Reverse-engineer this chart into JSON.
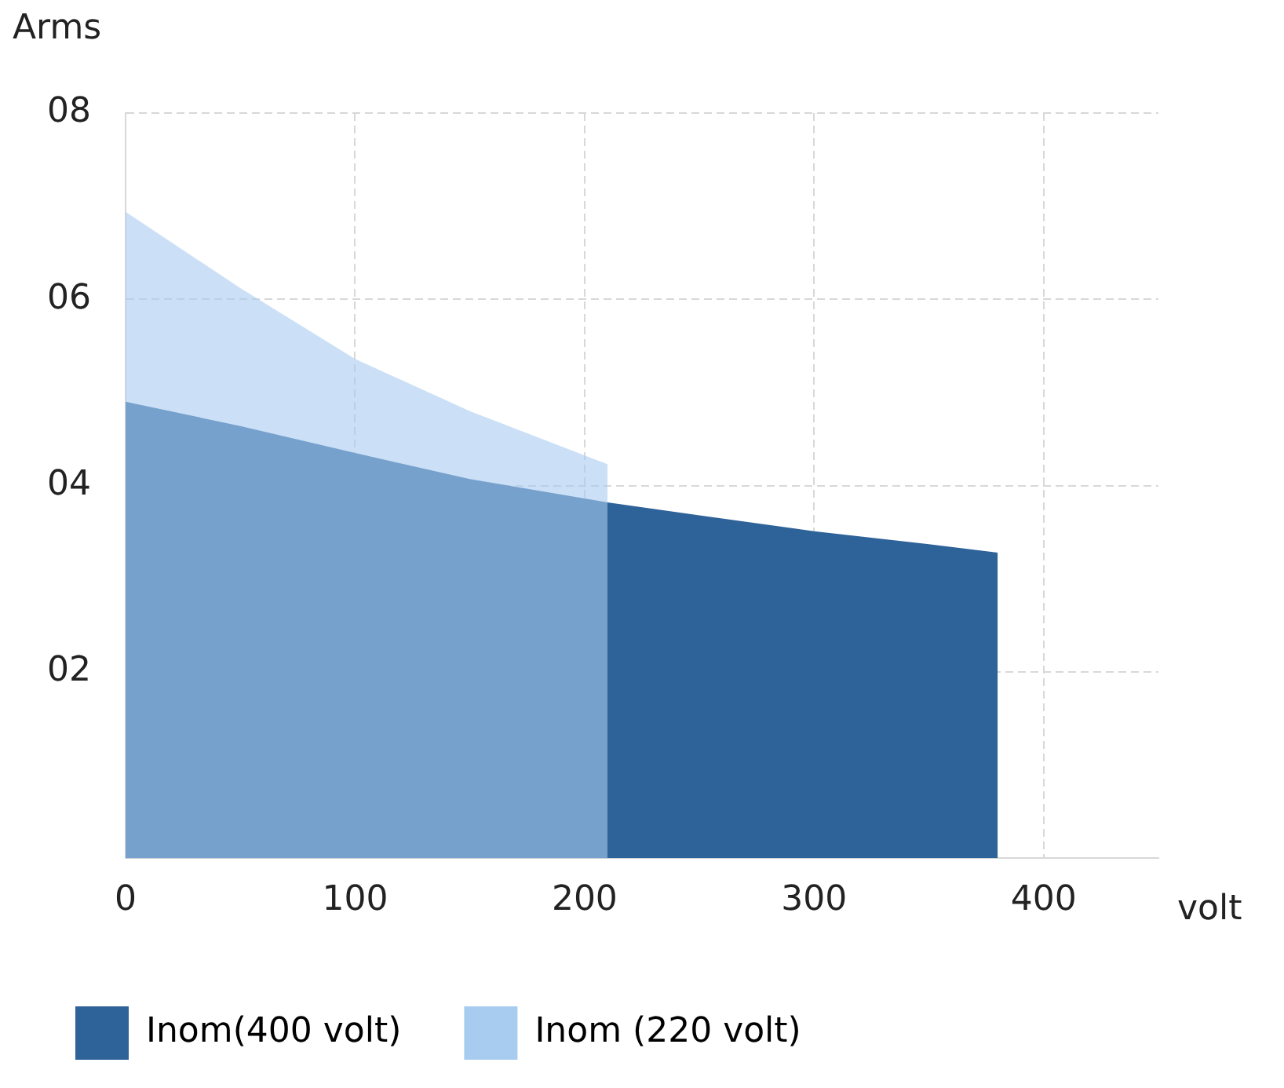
{
  "chart_data": {
    "type": "area",
    "xlabel": "volt",
    "ylabel": "Arms",
    "xlim": [
      0,
      450
    ],
    "ylim": [
      0,
      8
    ],
    "xticks": [
      0,
      100,
      200,
      300,
      400
    ],
    "yticks": [
      {
        "value": 2,
        "label": "02"
      },
      {
        "value": 4,
        "label": "04"
      },
      {
        "value": 6,
        "label": "06"
      },
      {
        "value": 8,
        "label": "08"
      }
    ],
    "grid": true,
    "legend": "bottom",
    "series": [
      {
        "name": "Inom(400 volt)",
        "color": "#2e6399",
        "x": [
          0,
          50,
          100,
          150,
          210,
          250,
          300,
          350,
          380
        ],
        "values": [
          4.9,
          4.64,
          4.35,
          4.07,
          3.82,
          3.68,
          3.51,
          3.37,
          3.28
        ]
      },
      {
        "name": "Inom (220 volt)",
        "color": "#a8ccf0",
        "x": [
          0,
          50,
          100,
          150,
          210
        ],
        "values": [
          6.94,
          6.12,
          5.36,
          4.8,
          4.23
        ]
      }
    ]
  }
}
